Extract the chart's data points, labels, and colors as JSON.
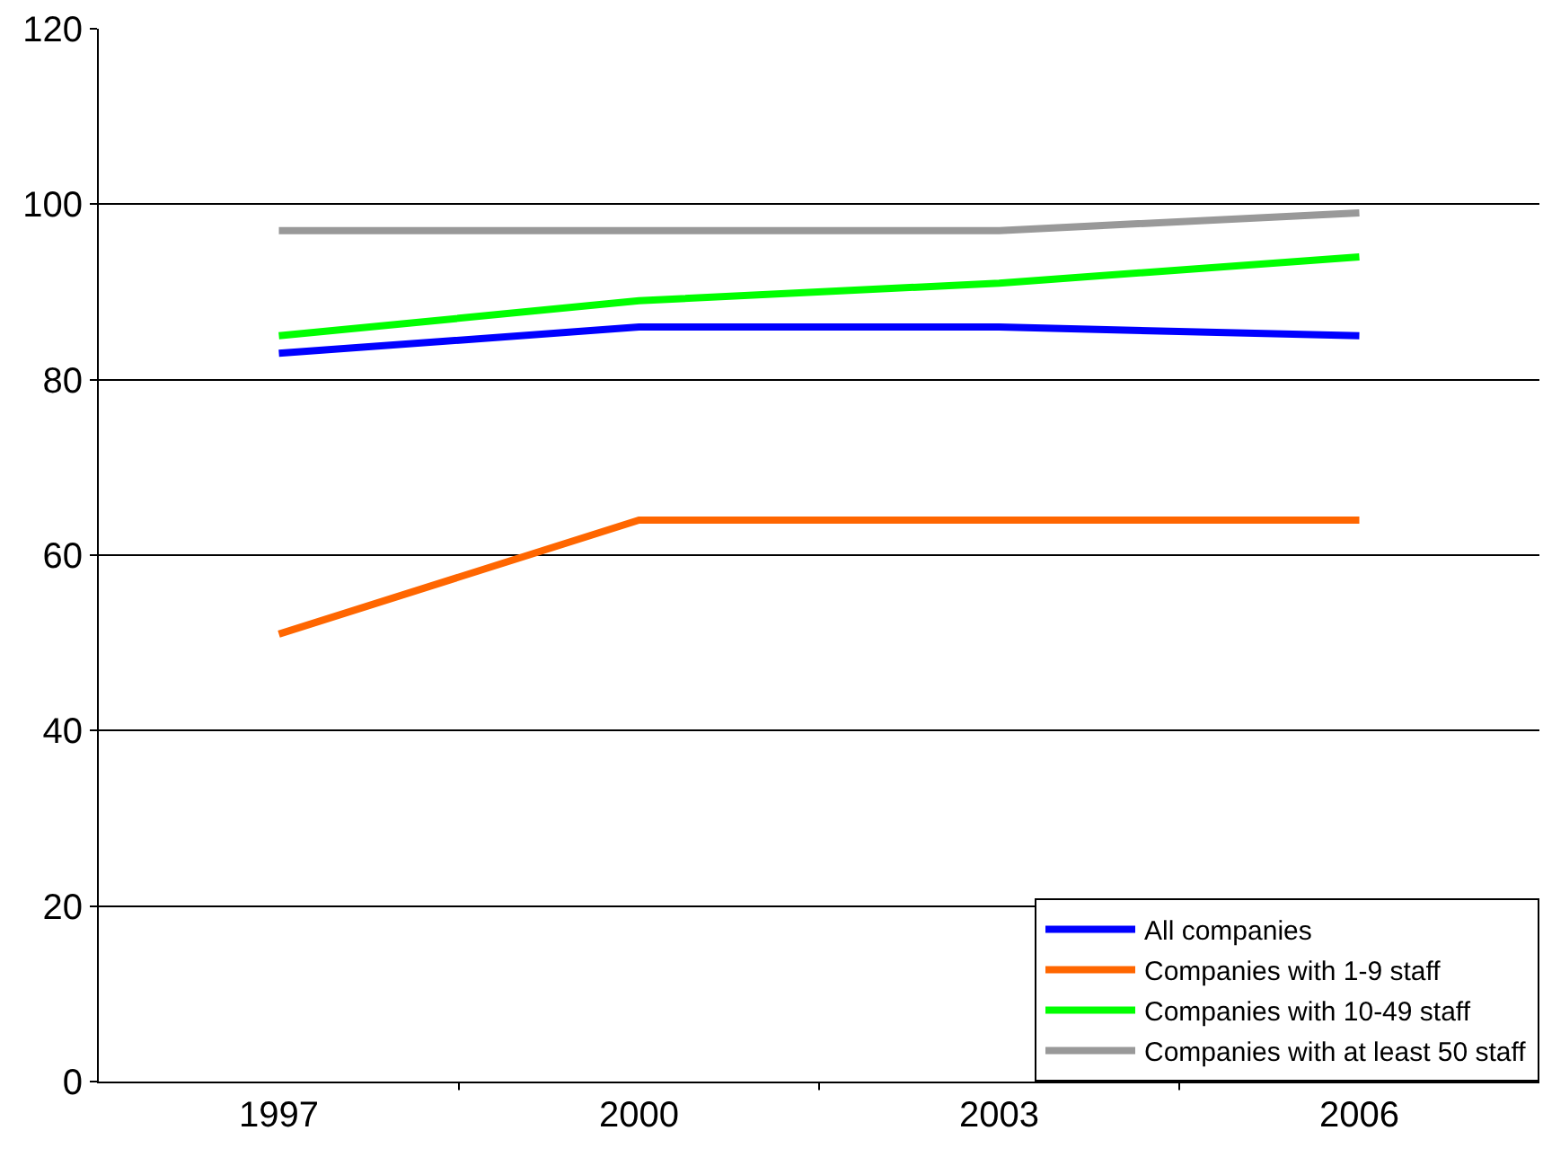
{
  "chart_data": {
    "type": "line",
    "categories": [
      "1997",
      "2000",
      "2003",
      "2006"
    ],
    "series": [
      {
        "name": "All companies",
        "color": "#0000ff",
        "values": [
          83,
          86,
          86,
          85
        ]
      },
      {
        "name": "Companies with 1-9 staff",
        "color": "#ff6600",
        "values": [
          51,
          64,
          64,
          64
        ]
      },
      {
        "name": "Companies with 10-49 staff",
        "color": "#00ff00",
        "values": [
          85,
          89,
          91,
          94
        ]
      },
      {
        "name": "Companies with at least 50 staff",
        "color": "#999999",
        "values": [
          97,
          97,
          97,
          99
        ]
      }
    ],
    "ylim": [
      0,
      120
    ],
    "yticks": [
      0,
      20,
      40,
      60,
      80,
      100,
      120
    ],
    "grid": "y",
    "legend": "bottom right",
    "marker": "none",
    "line_style": "solid"
  }
}
